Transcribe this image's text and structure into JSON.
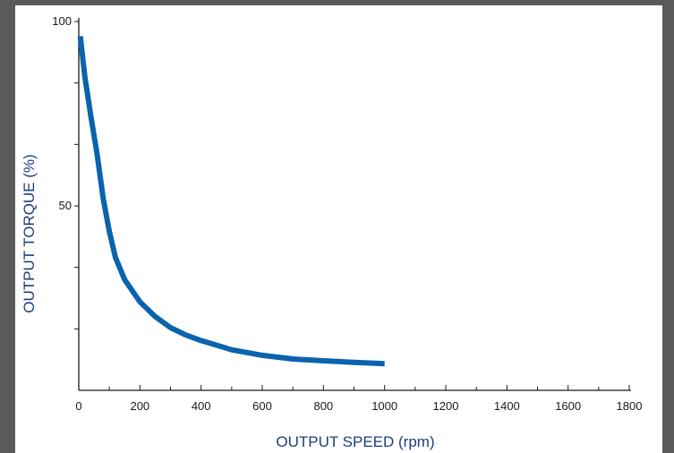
{
  "chart_data": {
    "type": "line",
    "title": "",
    "xlabel": "OUTPUT SPEED (rpm)",
    "ylabel": "OUTPUT TORQUE (%)",
    "xlim": [
      0,
      1800
    ],
    "ylim": [
      0,
      100
    ],
    "x_ticks": [
      "0",
      "200",
      "400",
      "600",
      "800",
      "1000",
      "1200",
      "1400",
      "1600",
      "1800"
    ],
    "y_ticks": [
      "50",
      "100"
    ],
    "grid": false,
    "series": [
      {
        "color": "#0a63ad",
        "x": [
          5,
          20,
          40,
          60,
          80,
          100,
          120,
          150,
          200,
          250,
          300,
          350,
          400,
          500,
          600,
          700,
          800,
          900,
          1000
        ],
        "y": [
          96,
          85,
          74,
          64,
          52,
          43,
          36,
          30,
          24,
          20,
          17,
          15,
          13.5,
          11,
          9.5,
          8.5,
          8,
          7.6,
          7.2
        ]
      }
    ]
  }
}
